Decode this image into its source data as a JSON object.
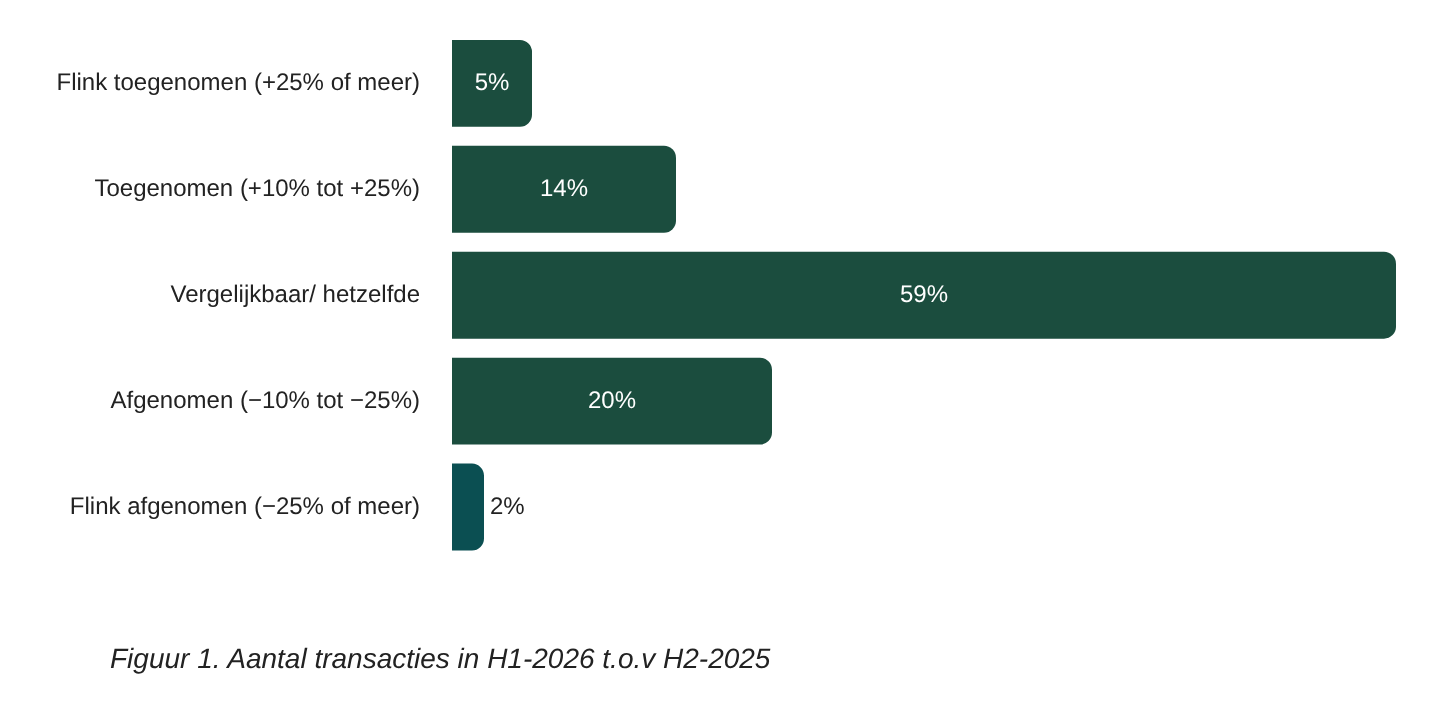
{
  "chart_data": {
    "type": "bar",
    "orientation": "horizontal",
    "categories": [
      "Flink toegenomen (+25% of meer)",
      "Toegenomen (+10% tot +25%)",
      "Vergelijkbaar/ hetzelfde",
      "Afgenomen (−10% tot −25%)",
      "Flink afgenomen (−25% of meer)"
    ],
    "values": [
      5,
      14,
      59,
      20,
      2
    ],
    "colors": [
      "#1b4d3e",
      "#1b4d3e",
      "#1b4d3e",
      "#1b4d3e",
      "#0b4f52"
    ],
    "value_labels": [
      "5%",
      "14%",
      "59%",
      "20%",
      "2%"
    ],
    "annotations": [
      "Figuur 1. Aantal transacties in H1-2026 t.o.v H2-2025"
    ],
    "grid": false,
    "legend": false
  }
}
